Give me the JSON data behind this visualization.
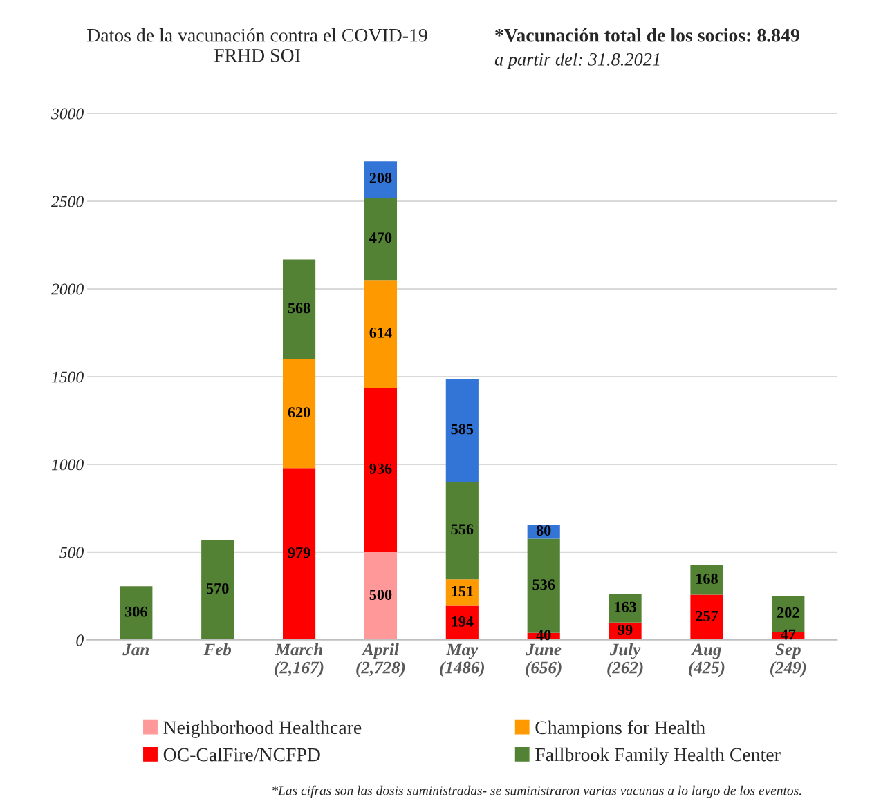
{
  "chart_data": {
    "type": "bar",
    "stacked": true,
    "title": "Datos de la vacunación contra el COVID-19\nFRHD SOI",
    "subtitle": "*Vacunación total de los socios: 8.849",
    "annotations": [
      "a partir del: 31.8.2021",
      "*Las cifras son las dosis suministradas- se suministraron varias vacunas a lo largo de los eventos."
    ],
    "categories": [
      "Jan",
      "Feb",
      "March\n(2,167)",
      "April\n(2,728)",
      "May\n(1486)",
      "June\n(656)",
      "July\n(262)",
      "Aug\n(425)",
      "Sep\n(249)"
    ],
    "series": [
      {
        "name": "Neighborhood Healthcare",
        "color": "#ff9999",
        "values": [
          null,
          null,
          null,
          500,
          null,
          null,
          null,
          null,
          null
        ]
      },
      {
        "name": "OC-CalFire/NCFPD",
        "color": "#ff0000",
        "values": [
          null,
          null,
          979,
          936,
          194,
          40,
          99,
          257,
          47
        ]
      },
      {
        "name": "Champions for Health",
        "color": "#ff9900",
        "values": [
          null,
          null,
          620,
          614,
          151,
          null,
          null,
          null,
          null
        ]
      },
      {
        "name": "Fallbrook Family Health Center",
        "color": "#548235",
        "values": [
          306,
          570,
          568,
          470,
          556,
          536,
          163,
          168,
          202
        ]
      },
      {
        "color": "#3375d6",
        "values": [
          null,
          null,
          null,
          208,
          585,
          80,
          null,
          null,
          null
        ]
      }
    ],
    "ylim": [
      0,
      3000
    ],
    "yticks": [
      0,
      500,
      1000,
      1500,
      2000,
      2500,
      3000
    ],
    "grid": "y",
    "data_labels": true,
    "legend": "bottom"
  }
}
